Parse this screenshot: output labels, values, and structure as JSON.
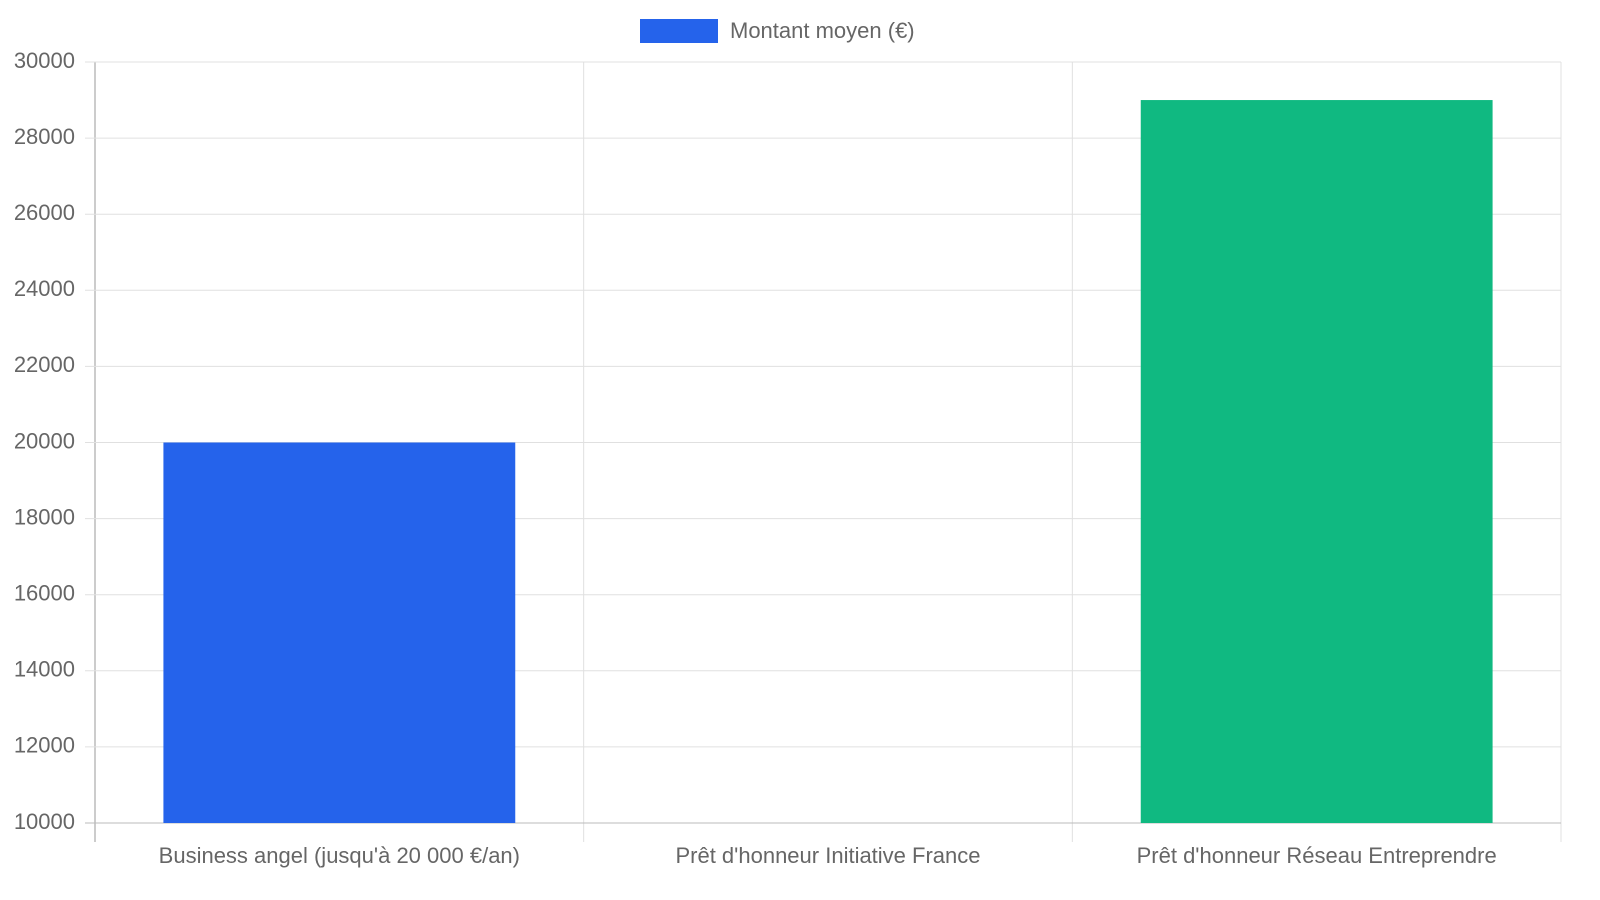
{
  "chart_data": {
    "type": "bar",
    "categories": [
      "Business angel (jusqu'à 20 000 €/an)",
      "Prêt d'honneur Initiative France",
      "Prêt d'honneur Réseau Entreprendre"
    ],
    "series": [
      {
        "name": "Montant moyen (€)",
        "values": [
          20000,
          null,
          29000
        ],
        "colors": [
          "#2563eb",
          null,
          "#10b981"
        ]
      }
    ],
    "ylim": [
      10000,
      30000
    ],
    "yticks": [
      10000,
      12000,
      14000,
      16000,
      18000,
      20000,
      22000,
      24000,
      26000,
      28000,
      30000
    ],
    "grid": true,
    "legend": "top"
  }
}
